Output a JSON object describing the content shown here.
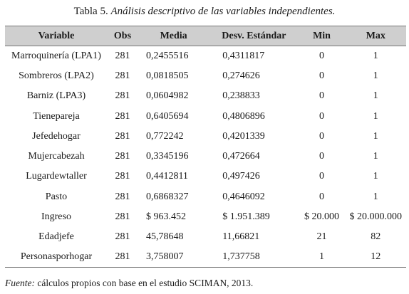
{
  "caption": {
    "number": "Tabla 5.",
    "text": "Análisis descriptivo de las variables independientes."
  },
  "columns": [
    "Variable",
    "Obs",
    "Media",
    "Desv. Estándar",
    "Min",
    "Max"
  ],
  "rows": [
    {
      "variable": "Marroquinería (LPA1)",
      "obs": "281",
      "mean": "0,2455516",
      "sd": "0,4311817",
      "min": "0",
      "max": "1"
    },
    {
      "variable": "Sombreros (LPA2)",
      "obs": "281",
      "mean": "0,0818505",
      "sd": "0,274626",
      "min": "0",
      "max": "1"
    },
    {
      "variable": "Barniz (LPA3)",
      "obs": "281",
      "mean": "0,0604982",
      "sd": "0,238833",
      "min": "0",
      "max": "1"
    },
    {
      "variable": "Tienepareja",
      "obs": "281",
      "mean": "0,6405694",
      "sd": "0,4806896",
      "min": "0",
      "max": "1"
    },
    {
      "variable": "Jefedehogar",
      "obs": "281",
      "mean": "0,772242",
      "sd": "0,4201339",
      "min": "0",
      "max": "1"
    },
    {
      "variable": "Mujercabezah",
      "obs": "281",
      "mean": "0,3345196",
      "sd": "0,472664",
      "min": "0",
      "max": "1"
    },
    {
      "variable": "Lugardewtaller",
      "obs": "281",
      "mean": "0,4412811",
      "sd": "0,497426",
      "min": "0",
      "max": "1"
    },
    {
      "variable": "Pasto",
      "obs": "281",
      "mean": "0,6868327",
      "sd": "0,4646092",
      "min": "0",
      "max": "1"
    },
    {
      "variable": "Ingreso",
      "obs": "281",
      "mean": "$ 963.452",
      "sd": "$ 1.951.389",
      "min": "$ 20.000",
      "max": "$ 20.000.000"
    },
    {
      "variable": "Edadjefe",
      "obs": "281",
      "mean": "45,78648",
      "sd": "11,66821",
      "min": "21",
      "max": "82"
    },
    {
      "variable": "Personasporhogar",
      "obs": "281",
      "mean": "3,758007",
      "sd": "1,737758",
      "min": "1",
      "max": "12"
    }
  ],
  "source": {
    "label": "Fuente:",
    "text": "cálculos propios con base en el estudio SCIMAN, 2013."
  }
}
